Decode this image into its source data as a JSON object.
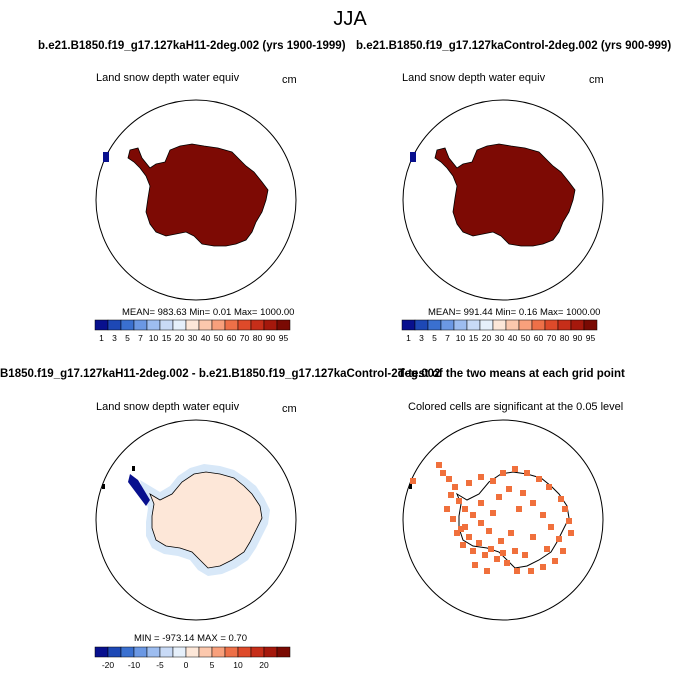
{
  "title": "JJA",
  "panels": {
    "top_left": {
      "header": "b.e21.B1850.f19_g17.127kaH11-2deg.002 (yrs 1900-1999)",
      "subtitle": "Land snow depth water equiv",
      "units": "cm",
      "stats": "MEAN= 983.63  Min=   0.01  Max= 1000.00"
    },
    "top_right": {
      "header": "b.e21.B1850.f19_g17.127kaControl-2deg.002 (yrs 900-999)",
      "subtitle": "Land snow depth water equiv",
      "units": "cm",
      "stats": "MEAN= 991.44  Min=   0.16  Max= 1000.00"
    },
    "bottom_left": {
      "header": "B1850.f19_g17.127kaH11-2deg.002 - b.e21.B1850.f19_g17.127kaControl-2deg.002",
      "subtitle": "Land snow depth water equiv",
      "units": "cm",
      "stats": "MIN = -973.14 MAX =   0.70"
    },
    "bottom_right": {
      "header": "T-test of the two means at each grid point",
      "subtitle": "Colored cells are significant at the 0.05 level"
    }
  },
  "colorbars": {
    "abs_labels": [
      "1",
      "3",
      "5",
      "7",
      "10",
      "15",
      "20",
      "30",
      "40",
      "50",
      "60",
      "70",
      "80",
      "90",
      "95"
    ],
    "abs_colors": [
      "#08108e",
      "#1d48b5",
      "#3a70d0",
      "#6b98e4",
      "#9dbdf0",
      "#c8daf6",
      "#e6f0fb",
      "#fde7d8",
      "#fcc8ad",
      "#f8a07c",
      "#ee7048",
      "#de4a2a",
      "#c62e19",
      "#a5180c",
      "#7a0a03"
    ],
    "diff_labels": [
      "-20",
      "-10",
      "-5",
      "0",
      "5",
      "10",
      "20"
    ],
    "diff_colors": [
      "#08108e",
      "#1d48b5",
      "#3a70d0",
      "#6b98e4",
      "#9dbdf0",
      "#c8daf6",
      "#e6f0fb",
      "#fde7d8",
      "#fcc8ad",
      "#f8a07c",
      "#ee7048",
      "#de4a2a",
      "#c62e19",
      "#a5180c",
      "#7a0a03"
    ]
  },
  "map_colors": {
    "antarctica_fill": "#7d0a04",
    "island_patch": "#08108e",
    "diff_fill": "#fde7d8",
    "diff_edge": "#d8e8f8",
    "diff_peninsula": "#08108e",
    "ttest_cells": "#f0703c"
  }
}
